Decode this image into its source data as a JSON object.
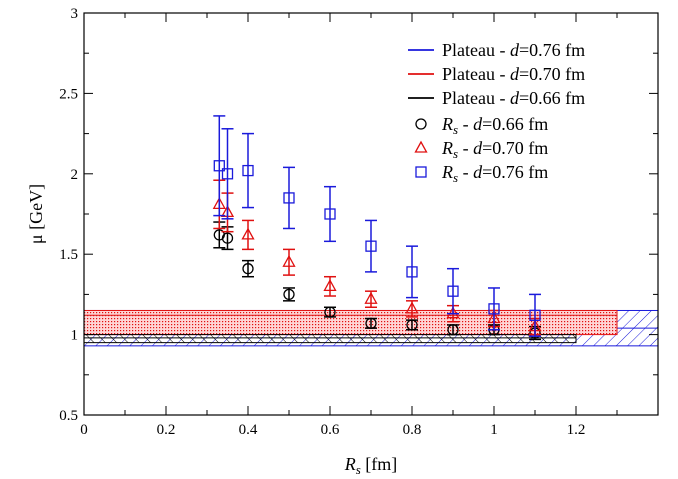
{
  "chart_data": {
    "type": "scatter",
    "xlabel_main": "R",
    "xlabel_sub": "s",
    "xlabel_unit": " [fm]",
    "ylabel": "μ [GeV]",
    "xlim": [
      0,
      1.4
    ],
    "ylim": [
      0.5,
      3
    ],
    "x_ticks": [
      0,
      0.2,
      0.4,
      0.6,
      0.8,
      1,
      1.2
    ],
    "x_tick_labels": [
      "0",
      "0.2",
      "0.4",
      "0.6",
      "0.8",
      "1",
      "1.2"
    ],
    "y_ticks": [
      0.5,
      1,
      1.5,
      2,
      2.5,
      3
    ],
    "y_tick_labels": [
      "0.5",
      "1",
      "1.5",
      "2",
      "2.5",
      "3"
    ],
    "grid": false,
    "legend_position": "top-right",
    "plateaus": [
      {
        "legend_prefix": "Plateau - ",
        "legend_var": "d",
        "legend_suffix": "=0.76 fm",
        "color": "#1a1adb",
        "value": 1.04,
        "band": [
          0.93,
          1.15
        ],
        "x_range": [
          0,
          1.4
        ],
        "hatch": "diagonal-down"
      },
      {
        "legend_prefix": "Plateau - ",
        "legend_var": "d",
        "legend_suffix": "=0.70 fm",
        "color": "#e01010",
        "value": 1.12,
        "band": [
          1.0,
          1.15
        ],
        "x_range": [
          0,
          1.3
        ],
        "hatch": "dots"
      },
      {
        "legend_prefix": "Plateau - ",
        "legend_var": "d",
        "legend_suffix": "=0.66 fm",
        "color": "#000000",
        "value": 0.98,
        "band": [
          0.95,
          1.0
        ],
        "x_range": [
          0,
          1.2
        ],
        "hatch": "diagonal-up"
      }
    ],
    "series": [
      {
        "legend_var": "R",
        "legend_sub": "s",
        "legend_suffix": " - d=0.66 fm",
        "marker": "circle",
        "color": "#000000",
        "x": [
          0.33,
          0.35,
          0.4,
          0.5,
          0.6,
          0.7,
          0.8,
          0.9,
          1.0,
          1.1
        ],
        "y": [
          1.62,
          1.6,
          1.41,
          1.25,
          1.14,
          1.07,
          1.06,
          1.03,
          1.03,
          1.01
        ],
        "err": [
          0.08,
          0.07,
          0.05,
          0.04,
          0.03,
          0.03,
          0.03,
          0.03,
          0.03,
          0.04
        ]
      },
      {
        "legend_var": "R",
        "legend_sub": "s",
        "legend_suffix": " - d=0.70 fm",
        "marker": "triangle",
        "color": "#e01010",
        "x": [
          0.33,
          0.35,
          0.4,
          0.5,
          0.6,
          0.7,
          0.8,
          0.9,
          1.0,
          1.1
        ],
        "y": [
          1.81,
          1.76,
          1.62,
          1.45,
          1.3,
          1.22,
          1.16,
          1.13,
          1.1,
          1.05
        ],
        "err": [
          0.15,
          0.12,
          0.09,
          0.08,
          0.06,
          0.05,
          0.05,
          0.05,
          0.05,
          0.05
        ]
      },
      {
        "legend_var": "R",
        "legend_sub": "s",
        "legend_suffix": " - d=0.76 fm",
        "marker": "square",
        "color": "#1a1adb",
        "x": [
          0.33,
          0.35,
          0.4,
          0.5,
          0.6,
          0.7,
          0.8,
          0.9,
          1.0,
          1.1
        ],
        "y": [
          2.05,
          2.0,
          2.02,
          1.85,
          1.75,
          1.55,
          1.39,
          1.27,
          1.16,
          1.12
        ],
        "err": [
          0.31,
          0.28,
          0.23,
          0.19,
          0.17,
          0.16,
          0.16,
          0.14,
          0.13,
          0.13
        ]
      }
    ]
  }
}
